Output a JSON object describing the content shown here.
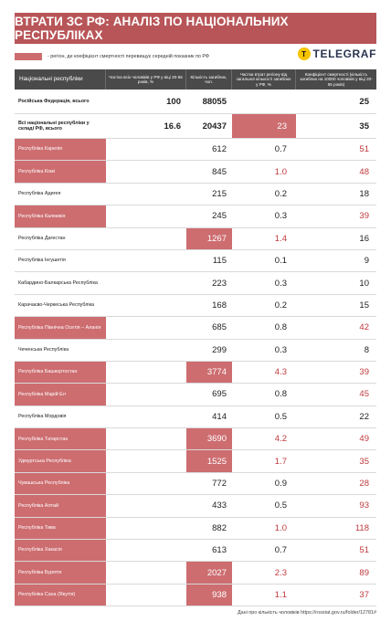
{
  "title": "ВТРАТИ ЗС РФ: АНАЛІЗ ПО НАЦІОНАЛЬНИХ РЕСПУБЛІКАХ",
  "legend_text": "- регіон, де коефіцієнт смертності перевищує середній показник по РФ",
  "logo": {
    "mark": "T",
    "text": "TELEGRAF"
  },
  "colors": {
    "banner": "#b85558",
    "highlight": "#cd6d70",
    "header": "#4a4a4a",
    "red_text": "#c0393d"
  },
  "headers": {
    "name": "Національні республіки",
    "share_pop": "Частка всіх чоловіків у РФ у віці 20-55 років, %",
    "deaths": "Кількість загиблих, чол.",
    "share_losses": "Частка втрат регіону від загальної кількості загиблих у РФ, %",
    "coef": "Коефіцієнт смертності (кількість загиблих на 10000 чоловіків у віці 20-55 років)"
  },
  "rows": [
    {
      "name": "Російська Федерація, всього",
      "share_pop": "100",
      "deaths": "88055",
      "share_losses": "",
      "coef": "25",
      "type": "total"
    },
    {
      "name": "Всі національні республіки у складі РФ, всього",
      "share_pop": "16.6",
      "deaths": "20437",
      "share_losses": "23",
      "coef": "35",
      "type": "total-hl"
    },
    {
      "name": "Республіка Карелія",
      "deaths": "612",
      "share_losses": "0.7",
      "coef": "51",
      "name_hl": true,
      "deaths_hl": false,
      "share_hl": false,
      "share_red": false,
      "coef_red": true
    },
    {
      "name": "Республіка Комі",
      "deaths": "845",
      "share_losses": "1.0",
      "coef": "48",
      "name_hl": true,
      "deaths_hl": false,
      "share_hl": false,
      "share_red": true,
      "coef_red": true
    },
    {
      "name": "Республіка Адигея",
      "deaths": "215",
      "share_losses": "0.2",
      "coef": "18",
      "name_hl": false,
      "deaths_hl": false,
      "share_hl": false,
      "share_red": false,
      "coef_red": false
    },
    {
      "name": "Республіка Калмикія",
      "deaths": "245",
      "share_losses": "0.3",
      "coef": "39",
      "name_hl": true,
      "deaths_hl": false,
      "share_hl": false,
      "share_red": false,
      "coef_red": true
    },
    {
      "name": "Республіка Дагестан",
      "deaths": "1267",
      "share_losses": "1.4",
      "coef": "16",
      "name_hl": false,
      "deaths_hl": true,
      "share_hl": false,
      "share_red": true,
      "coef_red": false
    },
    {
      "name": "Республіка Інгушетія",
      "deaths": "115",
      "share_losses": "0.1",
      "coef": "9",
      "name_hl": false,
      "deaths_hl": false,
      "share_hl": false,
      "share_red": false,
      "coef_red": false
    },
    {
      "name": "Кабардино-Балкарська Республіка",
      "deaths": "223",
      "share_losses": "0.3",
      "coef": "10",
      "name_hl": false,
      "deaths_hl": false,
      "share_hl": false,
      "share_red": false,
      "coef_red": false
    },
    {
      "name": "Карачаєво-Черкеська Республіка",
      "deaths": "168",
      "share_losses": "0.2",
      "coef": "15",
      "name_hl": false,
      "deaths_hl": false,
      "share_hl": false,
      "share_red": false,
      "coef_red": false
    },
    {
      "name": "Республіка Північна Осетія – Аланія",
      "deaths": "685",
      "share_losses": "0.8",
      "coef": "42",
      "name_hl": true,
      "deaths_hl": false,
      "share_hl": false,
      "share_red": false,
      "coef_red": true
    },
    {
      "name": "Чеченська Республіка",
      "deaths": "299",
      "share_losses": "0.3",
      "coef": "8",
      "name_hl": false,
      "deaths_hl": false,
      "share_hl": false,
      "share_red": false,
      "coef_red": false
    },
    {
      "name": "Республіка Башкортостан",
      "deaths": "3774",
      "share_losses": "4.3",
      "coef": "39",
      "name_hl": true,
      "deaths_hl": true,
      "share_hl": false,
      "share_red": true,
      "coef_red": true
    },
    {
      "name": "Республіка Марій Ел",
      "deaths": "695",
      "share_losses": "0.8",
      "coef": "45",
      "name_hl": true,
      "deaths_hl": false,
      "share_hl": false,
      "share_red": false,
      "coef_red": true
    },
    {
      "name": "Республіка Мордовія",
      "deaths": "414",
      "share_losses": "0.5",
      "coef": "22",
      "name_hl": false,
      "deaths_hl": false,
      "share_hl": false,
      "share_red": false,
      "coef_red": false
    },
    {
      "name": "Республіка Татарстан",
      "deaths": "3690",
      "share_losses": "4.2",
      "coef": "49",
      "name_hl": true,
      "deaths_hl": true,
      "share_hl": false,
      "share_red": true,
      "coef_red": true
    },
    {
      "name": "Удмуртська Республіка",
      "deaths": "1525",
      "share_losses": "1.7",
      "coef": "35",
      "name_hl": true,
      "deaths_hl": true,
      "share_hl": false,
      "share_red": true,
      "coef_red": true
    },
    {
      "name": "Чувашська Республіка",
      "deaths": "772",
      "share_losses": "0.9",
      "coef": "28",
      "name_hl": true,
      "deaths_hl": false,
      "share_hl": false,
      "share_red": false,
      "coef_red": true
    },
    {
      "name": "Республіка Алтай",
      "deaths": "433",
      "share_losses": "0.5",
      "coef": "93",
      "name_hl": true,
      "deaths_hl": false,
      "share_hl": false,
      "share_red": false,
      "coef_red": true
    },
    {
      "name": "Республіка Тива",
      "deaths": "882",
      "share_losses": "1.0",
      "coef": "118",
      "name_hl": true,
      "deaths_hl": false,
      "share_hl": false,
      "share_red": true,
      "coef_red": true
    },
    {
      "name": "Республіка Хакасія",
      "deaths": "613",
      "share_losses": "0.7",
      "coef": "51",
      "name_hl": true,
      "deaths_hl": false,
      "share_hl": false,
      "share_red": false,
      "coef_red": true
    },
    {
      "name": "Республіка Бурятія",
      "deaths": "2027",
      "share_losses": "2.3",
      "coef": "89",
      "name_hl": true,
      "deaths_hl": true,
      "share_hl": false,
      "share_red": true,
      "coef_red": true
    },
    {
      "name": "Республіка Саха (Якутія)",
      "deaths": "938",
      "share_losses": "1.1",
      "coef": "37",
      "name_hl": true,
      "deaths_hl": true,
      "share_hl": false,
      "share_red": true,
      "coef_red": true
    }
  ],
  "footer": "Дані про кількість чоловіків https://rosstat.gov.ru/folder/12781#"
}
